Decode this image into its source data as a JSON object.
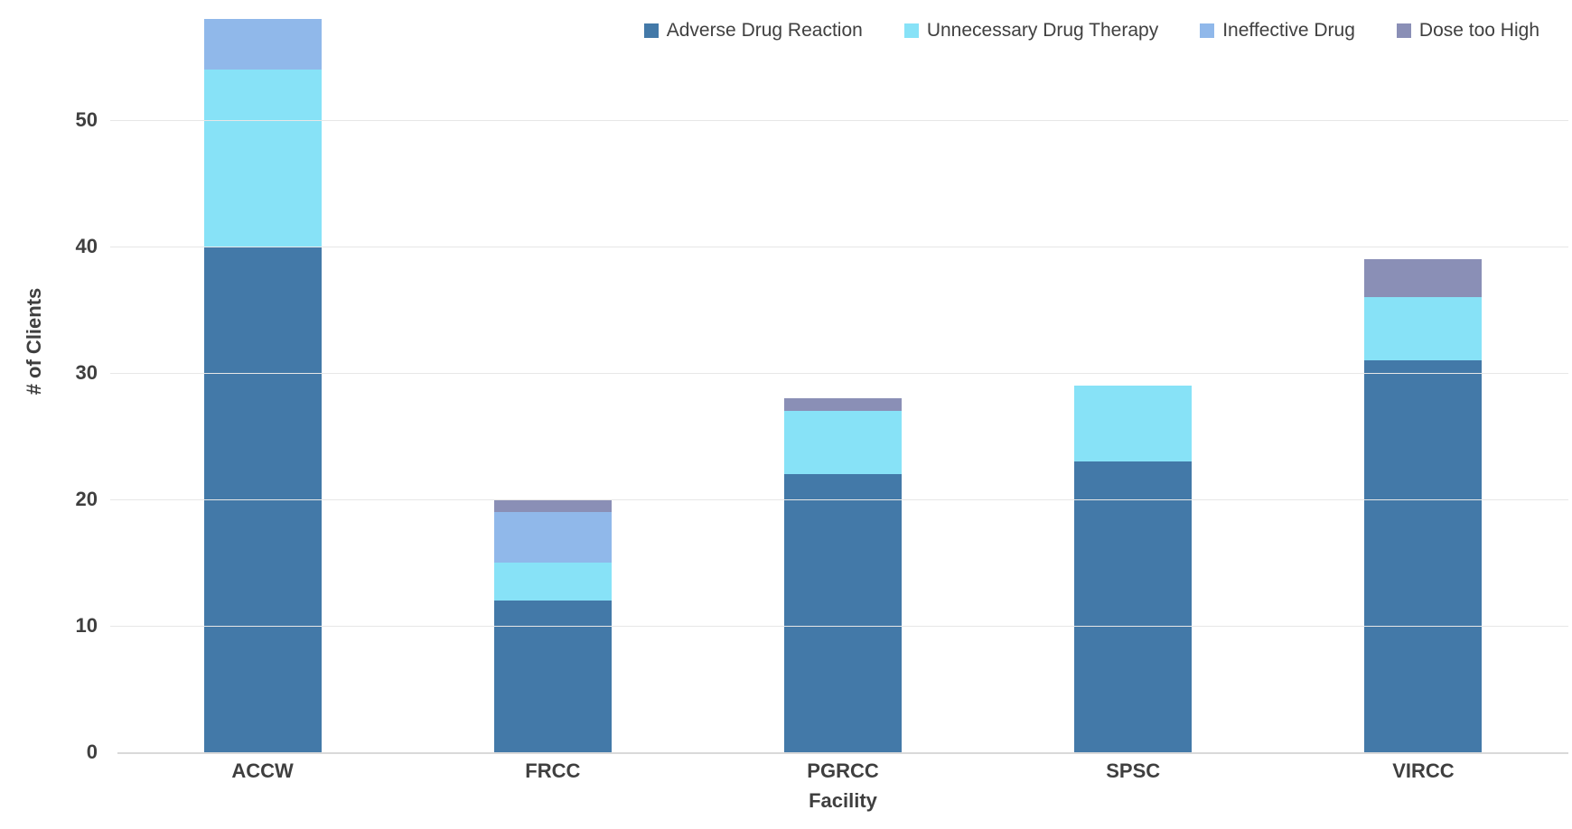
{
  "chart_data": {
    "type": "bar",
    "stacked": true,
    "title": "",
    "xlabel": "Facility",
    "ylabel": "# of Clients",
    "categories": [
      "ACCW",
      "FRCC",
      "PGRCC",
      "SPSC",
      "VIRCC"
    ],
    "series": [
      {
        "name": "Adverse Drug Reaction",
        "color": "#4379A8",
        "values": [
          40,
          12,
          22,
          23,
          31
        ]
      },
      {
        "name": "Unnecessary Drug Therapy",
        "color": "#87E2F7",
        "values": [
          14,
          3,
          5,
          6,
          5
        ]
      },
      {
        "name": "Ineffective Drug",
        "color": "#90B8EA",
        "values": [
          4,
          4,
          0,
          0,
          0
        ]
      },
      {
        "name": "Dose too High",
        "color": "#8A8FB6",
        "values": [
          0,
          1,
          1,
          0,
          3
        ]
      }
    ],
    "totals": [
      58,
      20,
      28,
      29,
      39
    ],
    "y_ticks": [
      0,
      10,
      20,
      30,
      40,
      50
    ],
    "ylim": [
      0,
      58
    ],
    "grid": true,
    "legend_position": "top-right",
    "colors": {
      "text": "#3F3F3F",
      "legend_text": "#404040",
      "gridline": "#E7E7E7",
      "axis_line": "#D9D9D9",
      "background": "#FFFFFF"
    }
  }
}
